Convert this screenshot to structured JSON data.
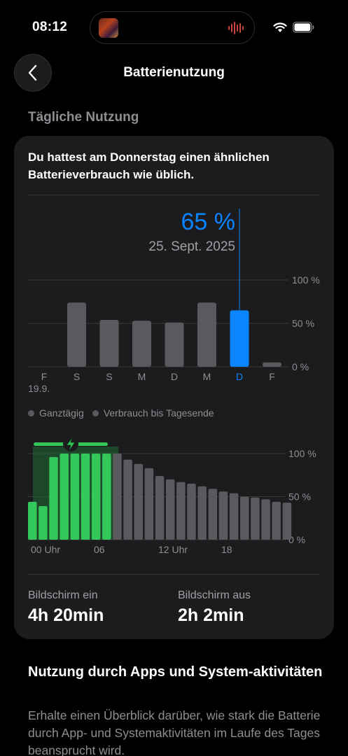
{
  "status_bar": {
    "time": "08:12"
  },
  "nav": {
    "title": "Batterienutzung"
  },
  "section": {
    "title": "Tägliche Nutzung"
  },
  "card": {
    "summary": "Du hattest am Donnerstag einen ähnlichen Batterieverbrauch wie üblich.",
    "selected": {
      "value": "65 %",
      "date": "25. Sept. 2025"
    },
    "legend": [
      "Ganztägig",
      "Verbrauch bis Tagesende"
    ],
    "stats": [
      {
        "label": "Bildschirm ein",
        "value": "4h 20min"
      },
      {
        "label": "Bildschirm aus",
        "value": "2h 2min"
      }
    ]
  },
  "colors": {
    "selected_bar": "#0a84ff",
    "default_bar": "#5a5a5e",
    "charging_bar": "#34c759",
    "charging_bar_dim": "#1f6b36"
  },
  "chart_data": [
    {
      "type": "bar",
      "categories": [
        "F",
        "S",
        "S",
        "M",
        "D",
        "M",
        "D",
        "F"
      ],
      "sub_labels": [
        "19.9.",
        "",
        "",
        "",
        "",
        "",
        "",
        ""
      ],
      "values": [
        0,
        74,
        54,
        53,
        51,
        74,
        65,
        5
      ],
      "selected_index": 6,
      "ylim": [
        0,
        100
      ],
      "y_ticks": [
        "0 %",
        "50 %",
        "100 %"
      ],
      "title": "",
      "xlabel": "",
      "ylabel": ""
    },
    {
      "type": "bar",
      "x_tick_labels": [
        "00 Uhr",
        "06",
        "12 Uhr",
        "18"
      ],
      "values": [
        44,
        39,
        96,
        100,
        100,
        100,
        100,
        100,
        100,
        93,
        88,
        83,
        74,
        70,
        67,
        65,
        62,
        59,
        56,
        54,
        50,
        49,
        47,
        44,
        43
      ],
      "charging": [
        true,
        true,
        true,
        true,
        true,
        true,
        true,
        true,
        false,
        false,
        false,
        false,
        false,
        false,
        false,
        false,
        false,
        false,
        false,
        false,
        false,
        false,
        false,
        false,
        false
      ],
      "charging_indicator_range": [
        0,
        7
      ],
      "ylim": [
        0,
        100
      ],
      "y_ticks": [
        "0 %",
        "50 %",
        "100 %"
      ],
      "title": "",
      "xlabel": "",
      "ylabel": ""
    }
  ],
  "apps_section": {
    "title": "Nutzung durch Apps und System-aktivitäten",
    "description": "Erhalte einen Überblick darüber, wie stark die Batterie durch App- und Systemaktivitäten im Laufe des Tages beansprucht wird."
  }
}
